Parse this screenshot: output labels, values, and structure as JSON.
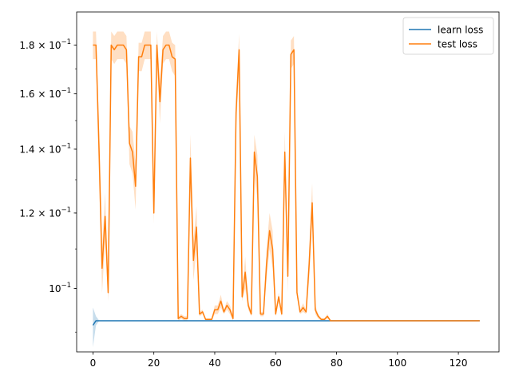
{
  "chart_data": {
    "type": "line",
    "title": "",
    "xlabel": "",
    "ylabel": "",
    "xlim": [
      -5.35,
      133.35
    ],
    "ylim": [
      0.0858,
      0.195
    ],
    "y_scale": "log",
    "x_ticks": [
      0,
      20,
      40,
      60,
      80,
      100,
      120
    ],
    "y_ticks": [
      {
        "value": 0.1,
        "mantissa": "10",
        "exponent": "−1"
      },
      {
        "value": 0.12,
        "mantissa": "1.2 × 10",
        "exponent": "−1"
      },
      {
        "value": 0.14,
        "mantissa": "1.4 × 10",
        "exponent": "−1"
      },
      {
        "value": 0.16,
        "mantissa": "1.6 × 10",
        "exponent": "−1"
      },
      {
        "value": 0.18,
        "mantissa": "1.8 × 10",
        "exponent": "−1"
      }
    ],
    "grid": false,
    "legend_position": "top-right",
    "series": [
      {
        "name": "learn loss",
        "color": "#1f77b4",
        "x": [
          0,
          1,
          2,
          10,
          20,
          40,
          60,
          80,
          100,
          127
        ],
        "y": [
          0.0915,
          0.0925,
          0.0925,
          0.0925,
          0.0925,
          0.0925,
          0.0925,
          0.0925,
          0.0925,
          0.0925
        ],
        "band_lower": [
          0.0868,
          0.0915,
          0.0924,
          0.0924,
          0.0924,
          0.0924,
          0.0924,
          0.0924,
          0.0924,
          0.0924
        ],
        "band_upper": [
          0.0955,
          0.0935,
          0.0926,
          0.0926,
          0.0926,
          0.0926,
          0.0926,
          0.0926,
          0.0926,
          0.0926
        ]
      },
      {
        "name": "test loss",
        "color": "#ff7f0e",
        "x": [
          0,
          1,
          2,
          3,
          4,
          5,
          6,
          7,
          8,
          9,
          10,
          11,
          12,
          13,
          14,
          15,
          16,
          17,
          18,
          19,
          20,
          21,
          22,
          23,
          24,
          25,
          26,
          27,
          28,
          29,
          30,
          31,
          32,
          33,
          34,
          35,
          36,
          37,
          38,
          39,
          40,
          41,
          42,
          43,
          44,
          45,
          46,
          47,
          48,
          49,
          50,
          51,
          52,
          53,
          54,
          55,
          56,
          57,
          58,
          59,
          60,
          61,
          62,
          63,
          64,
          65,
          66,
          67,
          68,
          69,
          70,
          71,
          72,
          73,
          74,
          75,
          76,
          77,
          78,
          79,
          80,
          90,
          100,
          110,
          120,
          127
        ],
        "y": [
          0.18,
          0.18,
          0.14,
          0.105,
          0.119,
          0.099,
          0.18,
          0.178,
          0.18,
          0.18,
          0.18,
          0.178,
          0.142,
          0.139,
          0.128,
          0.175,
          0.175,
          0.18,
          0.18,
          0.18,
          0.12,
          0.18,
          0.157,
          0.178,
          0.18,
          0.18,
          0.175,
          0.174,
          0.093,
          0.0935,
          0.093,
          0.093,
          0.137,
          0.107,
          0.116,
          0.094,
          0.0945,
          0.0928,
          0.0928,
          0.0928,
          0.095,
          0.095,
          0.097,
          0.0945,
          0.096,
          0.095,
          0.093,
          0.153,
          0.178,
          0.098,
          0.104,
          0.096,
          0.094,
          0.139,
          0.131,
          0.094,
          0.094,
          0.106,
          0.115,
          0.11,
          0.094,
          0.098,
          0.094,
          0.139,
          0.103,
          0.176,
          0.178,
          0.099,
          0.0945,
          0.0955,
          0.0945,
          0.106,
          0.123,
          0.095,
          0.0935,
          0.0928,
          0.0928,
          0.0935,
          0.0925,
          0.0925,
          0.0925,
          0.0925,
          0.0925,
          0.0925,
          0.0925,
          0.0925
        ],
        "band_lower": [
          0.174,
          0.174,
          0.13,
          0.099,
          0.112,
          0.097,
          0.174,
          0.172,
          0.174,
          0.174,
          0.174,
          0.172,
          0.135,
          0.132,
          0.121,
          0.169,
          0.169,
          0.174,
          0.174,
          0.174,
          0.117,
          0.174,
          0.149,
          0.172,
          0.174,
          0.174,
          0.169,
          0.167,
          0.0925,
          0.093,
          0.0925,
          0.0925,
          0.127,
          0.102,
          0.11,
          0.0935,
          0.094,
          0.0925,
          0.0925,
          0.0925,
          0.094,
          0.094,
          0.0955,
          0.094,
          0.095,
          0.094,
          0.0925,
          0.147,
          0.17,
          0.097,
          0.1,
          0.095,
          0.0935,
          0.131,
          0.124,
          0.0935,
          0.0935,
          0.102,
          0.11,
          0.105,
          0.0935,
          0.097,
          0.0935,
          0.132,
          0.099,
          0.17,
          0.172,
          0.098,
          0.094,
          0.0945,
          0.094,
          0.102,
          0.118,
          0.094,
          0.093,
          0.0925,
          0.0925,
          0.093,
          0.0924,
          0.0924,
          0.0924,
          0.0924,
          0.0924,
          0.0924,
          0.0924,
          0.0924
        ],
        "band_upper": [
          0.186,
          0.186,
          0.149,
          0.11,
          0.126,
          0.101,
          0.186,
          0.184,
          0.186,
          0.186,
          0.186,
          0.184,
          0.148,
          0.146,
          0.135,
          0.181,
          0.181,
          0.186,
          0.186,
          0.186,
          0.123,
          0.186,
          0.165,
          0.184,
          0.186,
          0.186,
          0.181,
          0.18,
          0.0935,
          0.094,
          0.0935,
          0.0935,
          0.145,
          0.112,
          0.122,
          0.0945,
          0.095,
          0.093,
          0.093,
          0.093,
          0.096,
          0.096,
          0.0985,
          0.095,
          0.097,
          0.096,
          0.0935,
          0.159,
          0.185,
          0.099,
          0.108,
          0.097,
          0.0945,
          0.145,
          0.138,
          0.0945,
          0.0945,
          0.11,
          0.12,
          0.115,
          0.0945,
          0.099,
          0.0945,
          0.146,
          0.107,
          0.182,
          0.184,
          0.1,
          0.095,
          0.0965,
          0.095,
          0.11,
          0.129,
          0.096,
          0.094,
          0.093,
          0.093,
          0.094,
          0.0926,
          0.0926,
          0.0926,
          0.0926,
          0.0926,
          0.0926,
          0.0926,
          0.0926
        ]
      }
    ]
  }
}
